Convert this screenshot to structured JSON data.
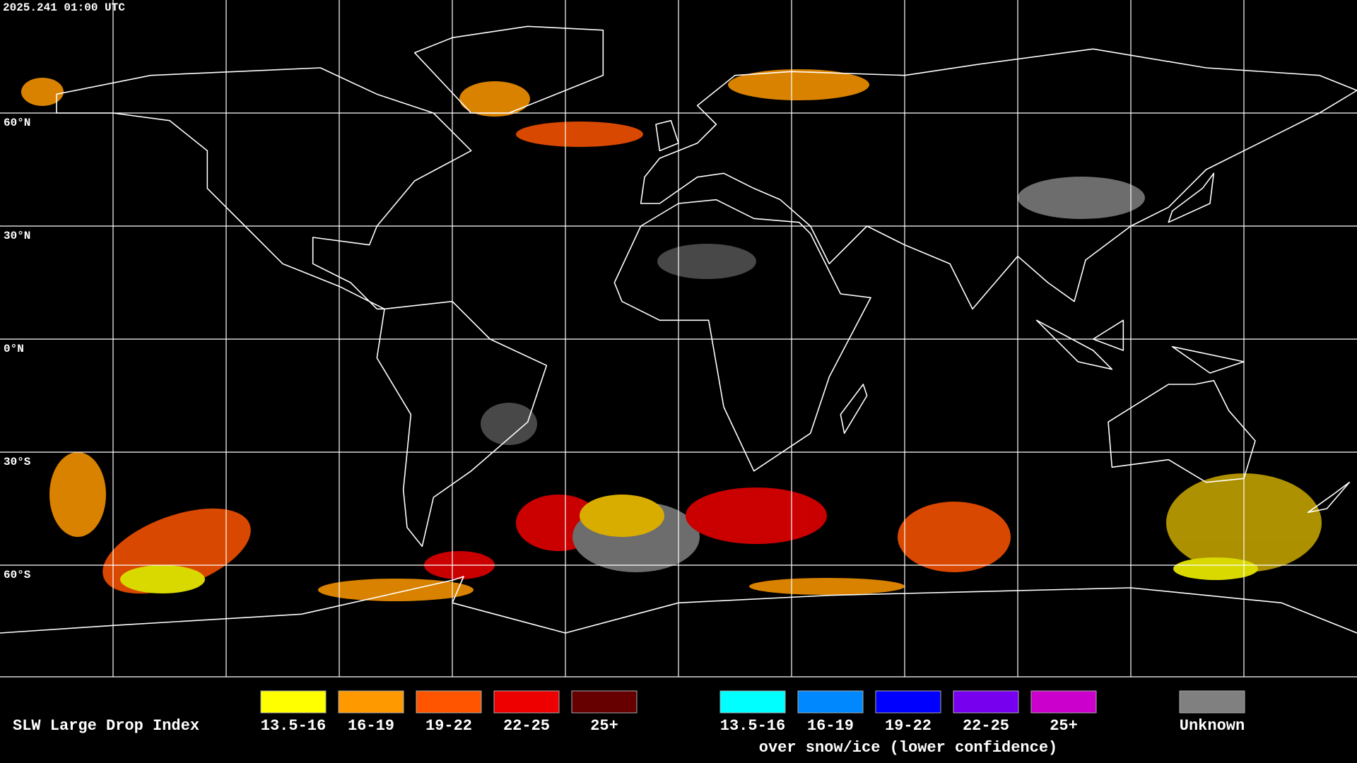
{
  "timestamp": "2025.241 01:00 UTC",
  "latitude_labels": [
    "60°N",
    "30°N",
    "0°N",
    "30°S",
    "60°S"
  ],
  "legend": {
    "title": "SLW Large Drop Index",
    "groups": [
      {
        "items": [
          {
            "label": "13.5-16",
            "color": "#ffff00"
          },
          {
            "label": "16-19",
            "color": "#ff9900"
          },
          {
            "label": "19-22",
            "color": "#ff5500"
          },
          {
            "label": "22-25",
            "color": "#ee0000"
          },
          {
            "label": "25+",
            "color": "#660000"
          }
        ]
      },
      {
        "items": [
          {
            "label": "13.5-16",
            "color": "#00ffff"
          },
          {
            "label": "16-19",
            "color": "#0088ff"
          },
          {
            "label": "19-22",
            "color": "#0000ff"
          },
          {
            "label": "22-25",
            "color": "#7700ee"
          },
          {
            "label": "25+",
            "color": "#cc00cc"
          }
        ],
        "note": "over snow/ice (lower confidence)"
      }
    ],
    "unknown": {
      "label": "Unknown",
      "color": "#808080"
    }
  }
}
